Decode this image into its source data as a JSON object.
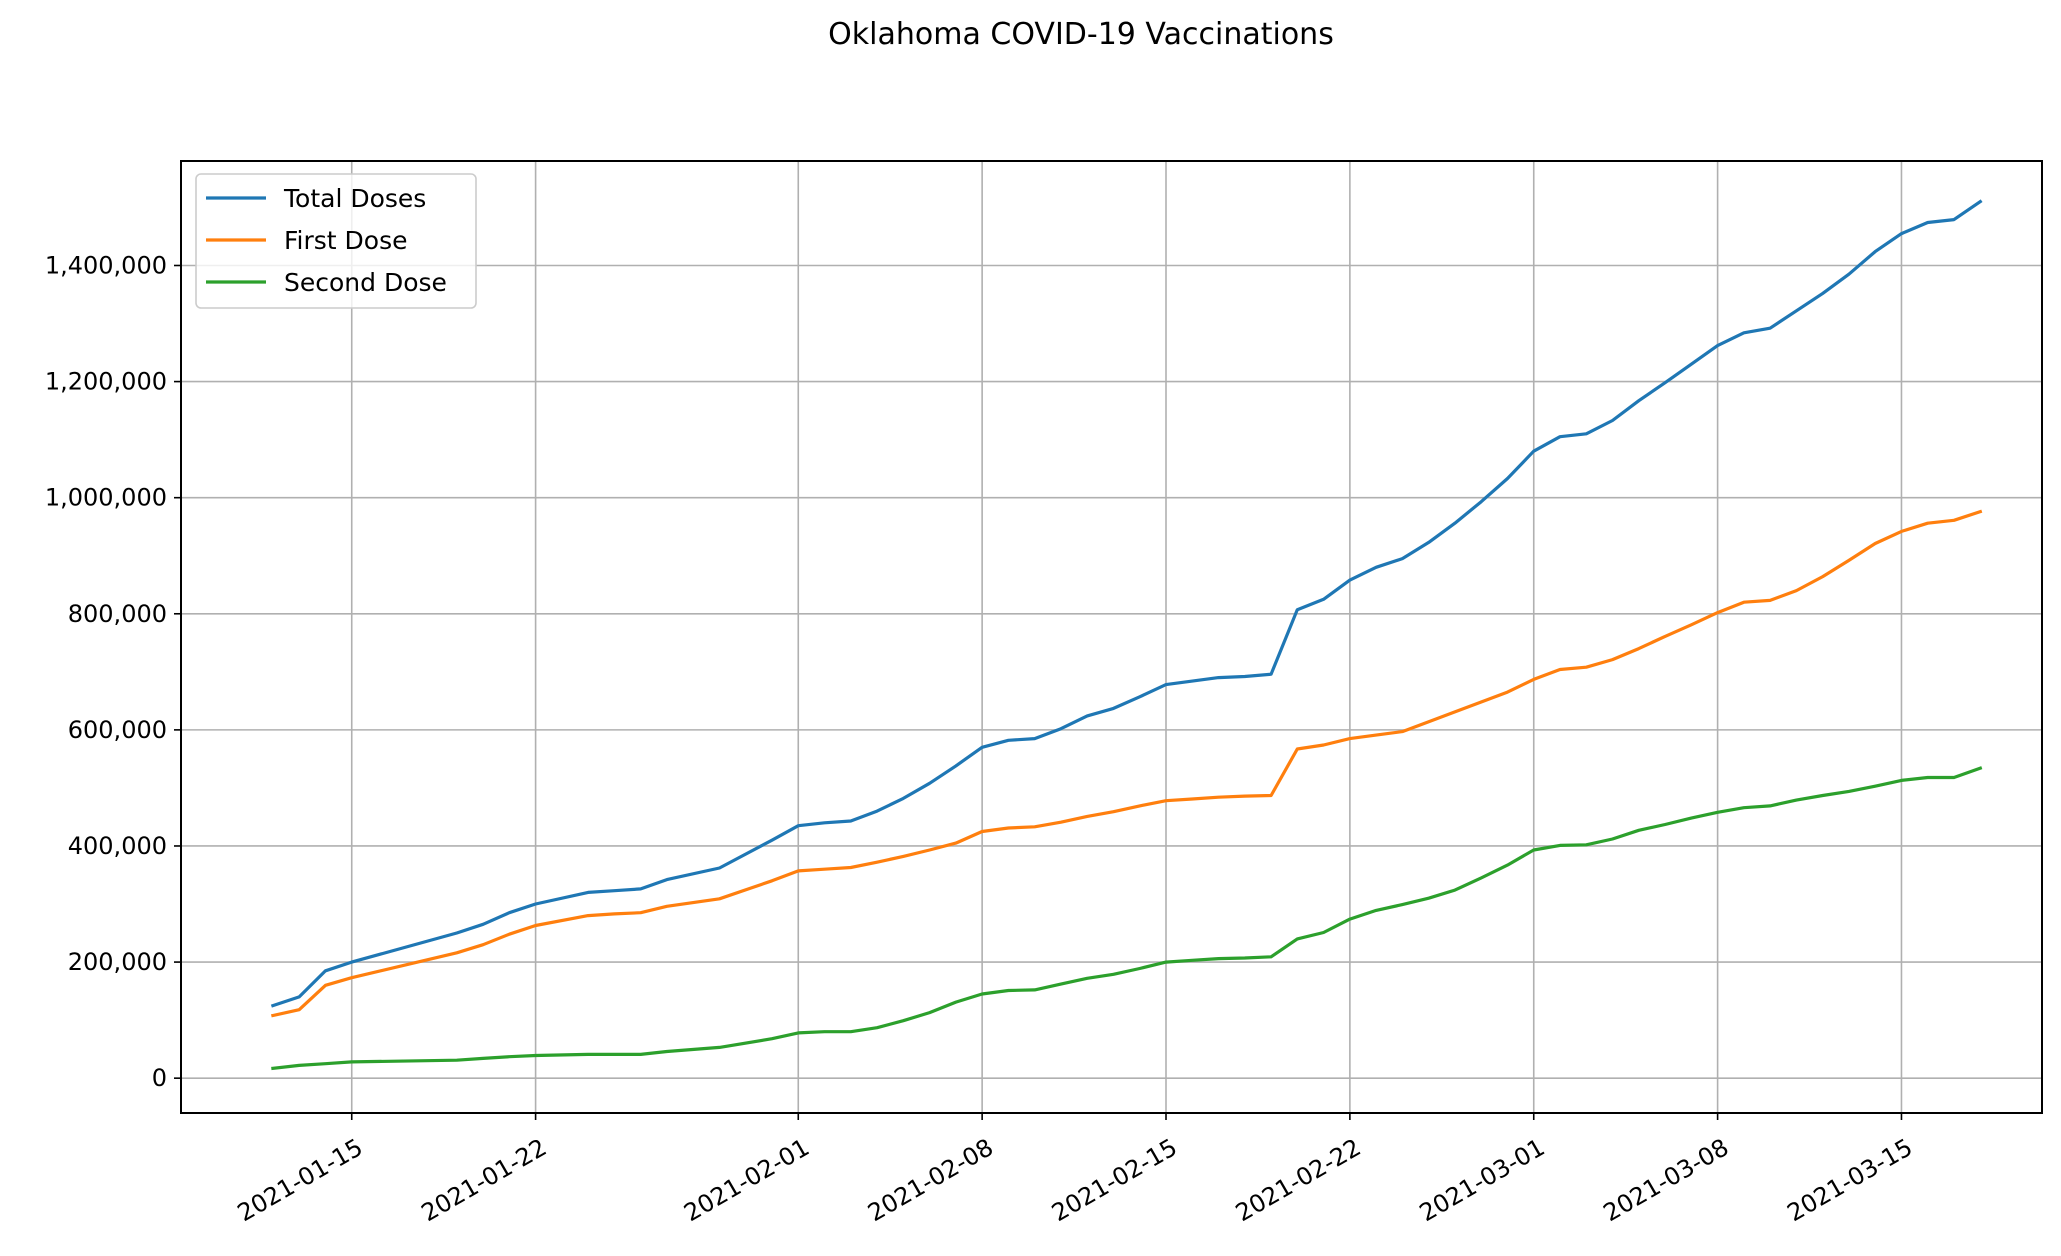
{
  "chart_data": {
    "type": "line",
    "title": "Oklahoma COVID-19 Vaccinations",
    "xlabel": "",
    "ylabel": "",
    "x_type": "date",
    "x_ticks": [
      "2021-01-15",
      "2021-01-22",
      "2021-02-01",
      "2021-02-08",
      "2021-02-15",
      "2021-02-22",
      "2021-03-01",
      "2021-03-08",
      "2021-03-15"
    ],
    "y_ticks": [
      0,
      200000,
      400000,
      600000,
      800000,
      1000000,
      1200000,
      1400000
    ],
    "y_tick_labels": [
      "0",
      "200,000",
      "400,000",
      "600,000",
      "800,000",
      "1,000,000",
      "1,200,000",
      "1,400,000"
    ],
    "xlim": [
      "2021-01-08",
      "2021-03-20"
    ],
    "ylim": [
      -60000,
      1580000
    ],
    "grid": true,
    "legend_position": "upper-left",
    "x": [
      "2021-01-12",
      "2021-01-13",
      "2021-01-14",
      "2021-01-15",
      "2021-01-19",
      "2021-01-20",
      "2021-01-21",
      "2021-01-22",
      "2021-01-24",
      "2021-01-25",
      "2021-01-26",
      "2021-01-27",
      "2021-01-29",
      "2021-01-31",
      "2021-02-01",
      "2021-02-02",
      "2021-02-03",
      "2021-02-04",
      "2021-02-05",
      "2021-02-06",
      "2021-02-07",
      "2021-02-08",
      "2021-02-09",
      "2021-02-10",
      "2021-02-11",
      "2021-02-12",
      "2021-02-13",
      "2021-02-14",
      "2021-02-15",
      "2021-02-16",
      "2021-02-17",
      "2021-02-18",
      "2021-02-19",
      "2021-02-20",
      "2021-02-21",
      "2021-02-22",
      "2021-02-23",
      "2021-02-24",
      "2021-02-25",
      "2021-02-26",
      "2021-02-27",
      "2021-02-28",
      "2021-03-01",
      "2021-03-02",
      "2021-03-03",
      "2021-03-04",
      "2021-03-05",
      "2021-03-06",
      "2021-03-07",
      "2021-03-08",
      "2021-03-09",
      "2021-03-10",
      "2021-03-11",
      "2021-03-12",
      "2021-03-13",
      "2021-03-14",
      "2021-03-15",
      "2021-03-16",
      "2021-03-17",
      "2021-03-18"
    ],
    "series": [
      {
        "name": "Total Doses",
        "color": "#1f77b4",
        "values": [
          125000,
          140000,
          185000,
          200000,
          250000,
          265000,
          285000,
          300000,
          320000,
          323000,
          326000,
          342000,
          362000,
          410000,
          435000,
          440000,
          443000,
          460000,
          482000,
          508000,
          538000,
          570000,
          582000,
          585000,
          602000,
          624000,
          637000,
          657000,
          678000,
          684000,
          690000,
          692000,
          696000,
          807000,
          825000,
          858000,
          880000,
          895000,
          923000,
          956000,
          993000,
          1033000,
          1080000,
          1105000,
          1110000,
          1133000,
          1167000,
          1198000,
          1230000,
          1262000,
          1284000,
          1292000,
          1322000,
          1352000,
          1385000,
          1424000,
          1455000,
          1474000,
          1479000,
          1510000
        ]
      },
      {
        "name": "First Dose",
        "color": "#ff7f0e",
        "values": [
          108000,
          118000,
          160000,
          173000,
          216000,
          230000,
          248000,
          263000,
          280000,
          283000,
          285000,
          296000,
          309000,
          340000,
          357000,
          360000,
          363000,
          372000,
          382000,
          393000,
          405000,
          425000,
          431000,
          433000,
          441000,
          451000,
          459000,
          469000,
          478000,
          481000,
          484000,
          486000,
          487000,
          567000,
          574000,
          585000,
          591000,
          597000,
          614000,
          631000,
          648000,
          665000,
          687000,
          704000,
          708000,
          721000,
          740000,
          761000,
          781000,
          802000,
          820000,
          823000,
          840000,
          864000,
          892000,
          921000,
          942000,
          956000,
          961000,
          976000
        ]
      },
      {
        "name": "Second Dose",
        "color": "#2ca02c",
        "values": [
          17000,
          22000,
          25000,
          28000,
          31000,
          34000,
          37000,
          39000,
          41000,
          41000,
          41000,
          46000,
          53000,
          68000,
          78000,
          80000,
          80000,
          87000,
          99000,
          113000,
          131000,
          145000,
          151000,
          152000,
          162000,
          172000,
          179000,
          189000,
          200000,
          203000,
          206000,
          207000,
          209000,
          240000,
          251000,
          274000,
          289000,
          299000,
          310000,
          324000,
          345000,
          367000,
          393000,
          401000,
          402000,
          412000,
          427000,
          437000,
          448000,
          458000,
          466000,
          469000,
          479000,
          487000,
          494000,
          503000,
          513000,
          518000,
          518000,
          534000
        ]
      }
    ]
  }
}
